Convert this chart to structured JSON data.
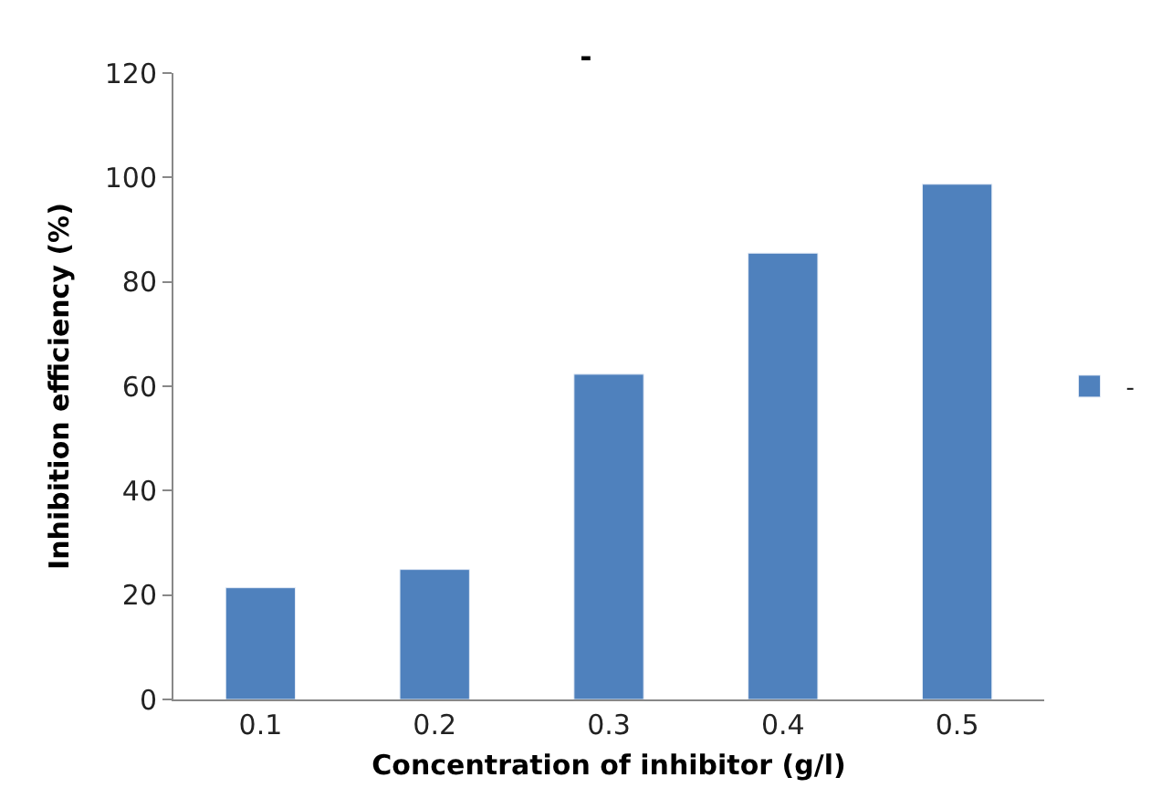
{
  "chart_data": {
    "type": "bar",
    "title": "-",
    "xlabel": "Concentration of inhibitor (g/l)",
    "ylabel": "Inhibition efficiency (%)",
    "categories": [
      "0.1",
      "0.2",
      "0.3",
      "0.4",
      "0.5"
    ],
    "series": [
      {
        "name": "-",
        "color": "#4f81bd",
        "values": [
          21.4,
          24.9,
          62.3,
          85.5,
          98.7
        ]
      }
    ],
    "ylim": [
      0,
      120
    ],
    "yticks": [
      0,
      20,
      40,
      60,
      80,
      100,
      120
    ],
    "grid": false,
    "legend": "right"
  }
}
